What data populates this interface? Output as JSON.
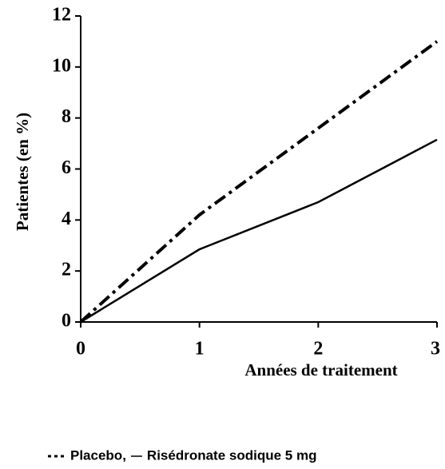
{
  "chart_data": {
    "type": "line",
    "x_label": "Années de traitement",
    "y_label": "Patientes (en %)",
    "x": [
      0,
      1,
      2,
      3
    ],
    "series": [
      {
        "name": "Placebo,",
        "color": "#000000",
        "dash": "dashdot",
        "values": [
          0,
          4.2,
          7.6,
          11.0
        ]
      },
      {
        "name": "Risédronate sodique 5 mg",
        "color": "#000000",
        "dash": "solid",
        "values": [
          0,
          2.85,
          4.7,
          7.15
        ]
      }
    ],
    "xlim": [
      0,
      3
    ],
    "xticks": [
      0,
      1,
      2,
      3
    ],
    "ylim": [
      0,
      12
    ],
    "yticks": [
      0,
      2,
      4,
      6,
      8,
      10,
      12
    ],
    "grid": false
  }
}
